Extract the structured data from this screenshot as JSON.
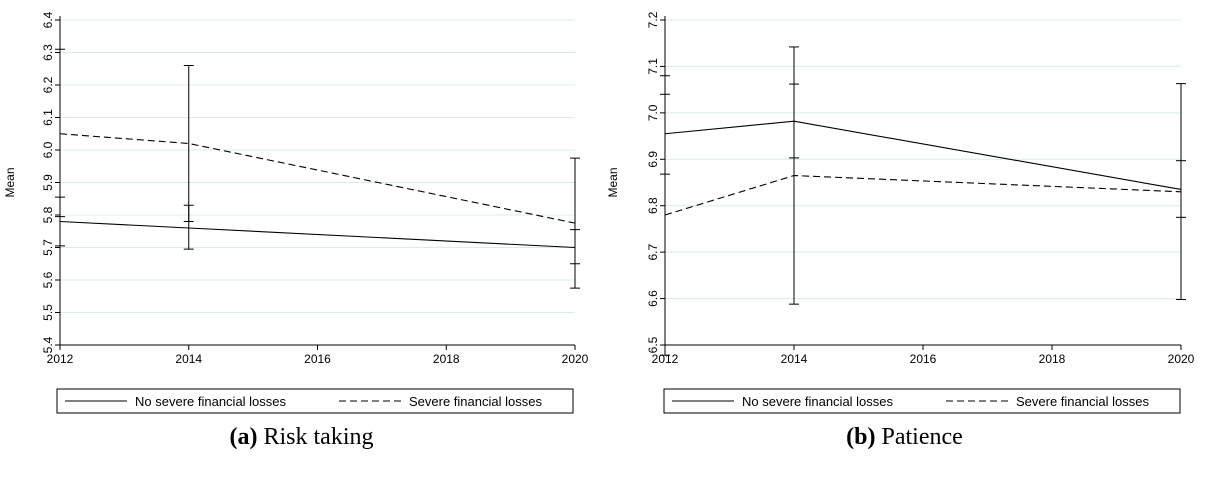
{
  "chart_data": [
    {
      "type": "line",
      "caption_tag": "(a)",
      "caption_text": "Risk taking",
      "ylabel": "Mean",
      "xlabel": "",
      "x": [
        2012,
        2014,
        2020
      ],
      "x_ticks": [
        "2012",
        "2014",
        "2016",
        "2018",
        "2020"
      ],
      "y_ticks": [
        "5.4",
        "5.5",
        "5.6",
        "5.7",
        "5.8",
        "5.9",
        "6.0",
        "6.1",
        "6.2",
        "6.3",
        "6.4"
      ],
      "ylim": [
        5.4,
        6.4
      ],
      "xlim": [
        2012,
        2020
      ],
      "grid": true,
      "legend_position": "bottom",
      "series": [
        {
          "name": "No severe financial losses",
          "style": "solid",
          "values": [
            5.78,
            5.76,
            5.7
          ],
          "ci_low": [
            5.705,
            5.695,
            5.575
          ],
          "ci_high": [
            5.855,
            5.83,
            5.755
          ]
        },
        {
          "name": "Severe financial losses",
          "style": "dashed",
          "values": [
            6.05,
            6.02,
            5.775
          ],
          "ci_low": [
            5.795,
            5.78,
            5.65
          ],
          "ci_high": [
            6.31,
            6.26,
            5.975
          ]
        }
      ]
    },
    {
      "type": "line",
      "caption_tag": "(b)",
      "caption_text": "Patience",
      "ylabel": "Mean",
      "xlabel": "",
      "x": [
        2012,
        2014,
        2020
      ],
      "x_ticks": [
        "2012",
        "2014",
        "2016",
        "2018",
        "2020"
      ],
      "y_ticks": [
        "6.5",
        "6.6",
        "6.7",
        "6.8",
        "6.9",
        "7.0",
        "7.1",
        "7.2"
      ],
      "ylim": [
        6.5,
        7.2
      ],
      "xlim": [
        2012,
        2020
      ],
      "grid": true,
      "legend_position": "bottom",
      "series": [
        {
          "name": "No severe financial losses",
          "style": "solid",
          "values": [
            6.955,
            6.982,
            6.835
          ],
          "ci_low": [
            6.868,
            6.903,
            6.775
          ],
          "ci_high": [
            7.04,
            7.062,
            6.897
          ]
        },
        {
          "name": "Severe financial losses",
          "style": "dashed",
          "values": [
            6.78,
            6.865,
            6.83
          ],
          "ci_low": [
            6.478,
            6.588,
            6.598
          ],
          "ci_high": [
            7.08,
            7.142,
            7.063
          ]
        }
      ]
    }
  ]
}
